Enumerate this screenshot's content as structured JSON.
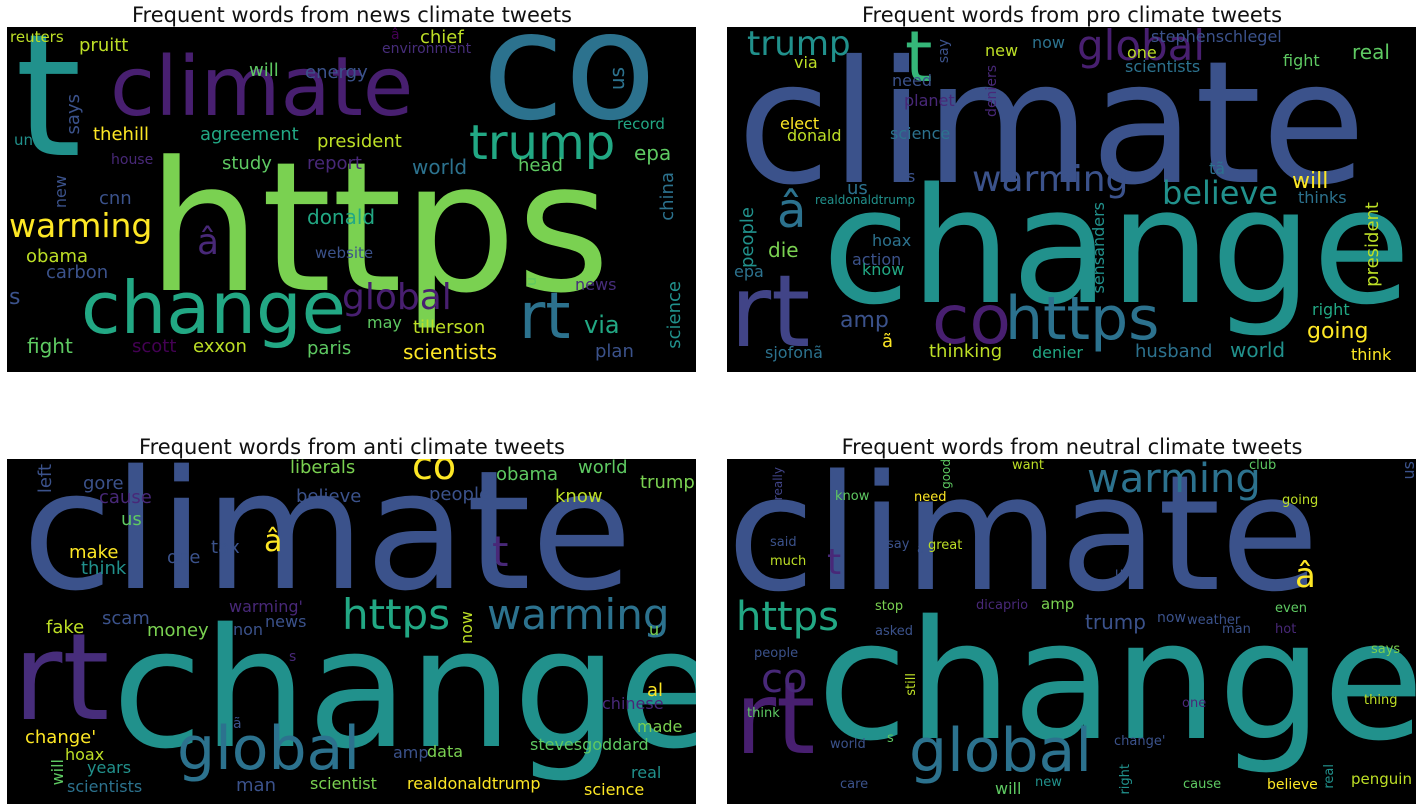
{
  "panels": [
    {
      "title": "Frequent words from news climate tweets",
      "words": [
        {
          "text": "https",
          "color": "#7ad151"
        },
        {
          "text": "co",
          "color": "#2c728e"
        },
        {
          "text": "t",
          "color": "#21918c"
        },
        {
          "text": "climate",
          "color": "#481f70"
        },
        {
          "text": "trump",
          "color": "#22a884"
        },
        {
          "text": "change",
          "color": "#22a884"
        },
        {
          "text": "rt",
          "color": "#2c728e"
        },
        {
          "text": "warming",
          "color": "#fde725"
        },
        {
          "text": "global",
          "color": "#481f70"
        },
        {
          "text": "reuters",
          "color": "#bddf26"
        },
        {
          "text": "pruitt",
          "color": "#bddf26"
        },
        {
          "text": "will",
          "color": "#5ec962"
        },
        {
          "text": "energy",
          "color": "#3b528b"
        },
        {
          "text": "â",
          "color": "#440154"
        },
        {
          "text": "environment",
          "color": "#472d7b"
        },
        {
          "text": "chief",
          "color": "#bddf26"
        },
        {
          "text": "us",
          "color": "#2c728e"
        },
        {
          "text": "un",
          "color": "#21918c"
        },
        {
          "text": "says",
          "color": "#3b528b"
        },
        {
          "text": "thehill",
          "color": "#fde725"
        },
        {
          "text": "agreement",
          "color": "#22a884"
        },
        {
          "text": "president",
          "color": "#bddf26"
        },
        {
          "text": "record",
          "color": "#22a884"
        },
        {
          "text": "house",
          "color": "#482878"
        },
        {
          "text": "study",
          "color": "#5ec962"
        },
        {
          "text": "report",
          "color": "#482878"
        },
        {
          "text": "world",
          "color": "#2c728e"
        },
        {
          "text": "head",
          "color": "#5ec962"
        },
        {
          "text": "epa",
          "color": "#5ec962"
        },
        {
          "text": "new",
          "color": "#3b528b"
        },
        {
          "text": "cnn",
          "color": "#3b528b"
        },
        {
          "text": "donald",
          "color": "#22a884"
        },
        {
          "text": "china",
          "color": "#2c728e"
        },
        {
          "text": "â",
          "color": "#482878"
        },
        {
          "text": "obama",
          "color": "#bddf26"
        },
        {
          "text": "website",
          "color": "#3b528b"
        },
        {
          "text": "carbon",
          "color": "#3b528b"
        },
        {
          "text": "u",
          "color": "#5ec962"
        },
        {
          "text": "news",
          "color": "#472d7b"
        },
        {
          "text": "s",
          "color": "#3b528b"
        },
        {
          "text": "science",
          "color": "#21918c"
        },
        {
          "text": "may",
          "color": "#5ec962"
        },
        {
          "text": "tillerson",
          "color": "#bddf26"
        },
        {
          "text": "via",
          "color": "#22a884"
        },
        {
          "text": "fight",
          "color": "#5ec962"
        },
        {
          "text": "scott",
          "color": "#440154"
        },
        {
          "text": "exxon",
          "color": "#bddf26"
        },
        {
          "text": "paris",
          "color": "#5ec962"
        },
        {
          "text": "scientists",
          "color": "#fde725"
        },
        {
          "text": "plan",
          "color": "#3b528b"
        }
      ]
    },
    {
      "title": "Frequent words from pro climate tweets",
      "words": [
        {
          "text": "climate",
          "color": "#3b528b"
        },
        {
          "text": "change",
          "color": "#21918c"
        },
        {
          "text": "rt",
          "color": "#414487"
        },
        {
          "text": "https",
          "color": "#2c728e"
        },
        {
          "text": "co",
          "color": "#481f70"
        },
        {
          "text": "t",
          "color": "#35b779"
        },
        {
          "text": "global",
          "color": "#481f70"
        },
        {
          "text": "trump",
          "color": "#21918c"
        },
        {
          "text": "warming",
          "color": "#3b528b"
        },
        {
          "text": "believe",
          "color": "#21918c"
        },
        {
          "text": "â",
          "color": "#2c728e"
        },
        {
          "text": "amp",
          "color": "#3b528b"
        },
        {
          "text": "going",
          "color": "#fde725"
        },
        {
          "text": "world",
          "color": "#21918c"
        },
        {
          "text": "husband",
          "color": "#2c728e"
        },
        {
          "text": "thinking",
          "color": "#bddf26"
        },
        {
          "text": "denier",
          "color": "#22a884"
        },
        {
          "text": "ã",
          "color": "#fde725"
        },
        {
          "text": "sjofonã",
          "color": "#2c728e"
        },
        {
          "text": "people",
          "color": "#21918c"
        },
        {
          "text": "die",
          "color": "#7ad151"
        },
        {
          "text": "epa",
          "color": "#2c728e"
        },
        {
          "text": "hoax",
          "color": "#2c728e"
        },
        {
          "text": "action",
          "color": "#3b528b"
        },
        {
          "text": "know",
          "color": "#22a884"
        },
        {
          "text": "us",
          "color": "#2c728e"
        },
        {
          "text": "s",
          "color": "#3b528b"
        },
        {
          "text": "realdonaldtrump",
          "color": "#21918c"
        },
        {
          "text": "elect",
          "color": "#fde725"
        },
        {
          "text": "donald",
          "color": "#bddf26"
        },
        {
          "text": "science",
          "color": "#2c728e"
        },
        {
          "text": "planet",
          "color": "#482878"
        },
        {
          "text": "need",
          "color": "#3b528b"
        },
        {
          "text": "via",
          "color": "#bddf26"
        },
        {
          "text": "say",
          "color": "#3b528b"
        },
        {
          "text": "new",
          "color": "#bddf26"
        },
        {
          "text": "now",
          "color": "#2c728e"
        },
        {
          "text": "deniers",
          "color": "#482878"
        },
        {
          "text": "one",
          "color": "#bddf26"
        },
        {
          "text": "stephenschlegel",
          "color": "#3b528b"
        },
        {
          "text": "scientists",
          "color": "#2c728e"
        },
        {
          "text": "real",
          "color": "#5ec962"
        },
        {
          "text": "fight",
          "color": "#5ec962"
        },
        {
          "text": "tã",
          "color": "#2c728e"
        },
        {
          "text": "will",
          "color": "#fde725"
        },
        {
          "text": "thinks",
          "color": "#2c728e"
        },
        {
          "text": "president",
          "color": "#bddf26"
        },
        {
          "text": "sensanders",
          "color": "#21918c"
        },
        {
          "text": "right",
          "color": "#22a884"
        },
        {
          "text": "think",
          "color": "#fde725"
        }
      ]
    },
    {
      "title": "Frequent words from anti climate tweets",
      "words": [
        {
          "text": "climate",
          "color": "#3b528b"
        },
        {
          "text": "change",
          "color": "#21918c"
        },
        {
          "text": "rt",
          "color": "#472d7b"
        },
        {
          "text": "global",
          "color": "#2c728e"
        },
        {
          "text": "https",
          "color": "#22a884"
        },
        {
          "text": "warming",
          "color": "#2c728e"
        },
        {
          "text": "co",
          "color": "#fde725"
        },
        {
          "text": "t",
          "color": "#482878"
        },
        {
          "text": "â",
          "color": "#fde725"
        },
        {
          "text": "gore",
          "color": "#3b528b"
        },
        {
          "text": "cause",
          "color": "#482878"
        },
        {
          "text": "left",
          "color": "#3b528b"
        },
        {
          "text": "liberals",
          "color": "#7ad151"
        },
        {
          "text": "believe",
          "color": "#3b528b"
        },
        {
          "text": "people",
          "color": "#3b528b"
        },
        {
          "text": "obama",
          "color": "#5ec962"
        },
        {
          "text": "know",
          "color": "#bddf26"
        },
        {
          "text": "world",
          "color": "#5ec962"
        },
        {
          "text": "trump",
          "color": "#7ad151"
        },
        {
          "text": "us",
          "color": "#5ec962"
        },
        {
          "text": "make",
          "color": "#fde725"
        },
        {
          "text": "one",
          "color": "#3b528b"
        },
        {
          "text": "think",
          "color": "#21918c"
        },
        {
          "text": "tax",
          "color": "#3b528b"
        },
        {
          "text": "warming'",
          "color": "#482878"
        },
        {
          "text": "scam",
          "color": "#3b528b"
        },
        {
          "text": "non",
          "color": "#3b528b"
        },
        {
          "text": "news",
          "color": "#3b528b"
        },
        {
          "text": "fake",
          "color": "#bddf26"
        },
        {
          "text": "money",
          "color": "#7ad151"
        },
        {
          "text": "now",
          "color": "#bddf26"
        },
        {
          "text": "u",
          "color": "#7ad151"
        },
        {
          "text": "s",
          "color": "#482878"
        },
        {
          "text": "al",
          "color": "#fde725"
        },
        {
          "text": "chinese",
          "color": "#482878"
        },
        {
          "text": "made",
          "color": "#7ad151"
        },
        {
          "text": "ã",
          "color": "#3b528b"
        },
        {
          "text": "change'",
          "color": "#fde725"
        },
        {
          "text": "hoax",
          "color": "#bddf26"
        },
        {
          "text": "amp",
          "color": "#3b528b"
        },
        {
          "text": "data",
          "color": "#7ad151"
        },
        {
          "text": "stevesgoddard",
          "color": "#5ec962"
        },
        {
          "text": "will",
          "color": "#5ec962"
        },
        {
          "text": "years",
          "color": "#21918c"
        },
        {
          "text": "real",
          "color": "#21918c"
        },
        {
          "text": "scientists",
          "color": "#2c728e"
        },
        {
          "text": "man",
          "color": "#3b528b"
        },
        {
          "text": "scientist",
          "color": "#7ad151"
        },
        {
          "text": "realdonaldtrump",
          "color": "#fde725"
        },
        {
          "text": "science",
          "color": "#fde725"
        }
      ]
    },
    {
      "title": "Frequent words from neutral climate tweets",
      "words": [
        {
          "text": "climate",
          "color": "#3b528b"
        },
        {
          "text": "change",
          "color": "#21918c"
        },
        {
          "text": "rt",
          "color": "#481f70"
        },
        {
          "text": "global",
          "color": "#2c728e"
        },
        {
          "text": "https",
          "color": "#22a884"
        },
        {
          "text": "warming",
          "color": "#2c728e"
        },
        {
          "text": "co",
          "color": "#482878"
        },
        {
          "text": "t",
          "color": "#482878"
        },
        {
          "text": "â",
          "color": "#fde725"
        },
        {
          "text": "really",
          "color": "#414487"
        },
        {
          "text": "know",
          "color": "#5ec962"
        },
        {
          "text": "good",
          "color": "#5ec962"
        },
        {
          "text": "need",
          "color": "#fde725"
        },
        {
          "text": "want",
          "color": "#bddf26"
        },
        {
          "text": "club",
          "color": "#5ec962"
        },
        {
          "text": "us",
          "color": "#3b528b"
        },
        {
          "text": "going",
          "color": "#bddf26"
        },
        {
          "text": "said",
          "color": "#3b528b"
        },
        {
          "text": "say",
          "color": "#3b528b"
        },
        {
          "text": "great",
          "color": "#bddf26"
        },
        {
          "text": "ã",
          "color": "#3b528b"
        },
        {
          "text": "much",
          "color": "#bddf26"
        },
        {
          "text": "u",
          "color": "#3b528b"
        },
        {
          "text": "stop",
          "color": "#7ad151"
        },
        {
          "text": "dicaprio",
          "color": "#482878"
        },
        {
          "text": "amp",
          "color": "#7ad151"
        },
        {
          "text": "even",
          "color": "#5ec962"
        },
        {
          "text": "trump",
          "color": "#3b528b"
        },
        {
          "text": "now",
          "color": "#3b528b"
        },
        {
          "text": "weather",
          "color": "#3b528b"
        },
        {
          "text": "man",
          "color": "#3b528b"
        },
        {
          "text": "asked",
          "color": "#3b528b"
        },
        {
          "text": "hot",
          "color": "#482878"
        },
        {
          "text": "people",
          "color": "#3b528b"
        },
        {
          "text": "says",
          "color": "#7ad151"
        },
        {
          "text": "still",
          "color": "#bddf26"
        },
        {
          "text": "one",
          "color": "#482878"
        },
        {
          "text": "think",
          "color": "#5ec962"
        },
        {
          "text": "thing",
          "color": "#bddf26"
        },
        {
          "text": "world",
          "color": "#3b528b"
        },
        {
          "text": "s",
          "color": "#5ec962"
        },
        {
          "text": "change'",
          "color": "#3b528b"
        },
        {
          "text": "right",
          "color": "#21918c"
        },
        {
          "text": "real",
          "color": "#21918c"
        },
        {
          "text": "care",
          "color": "#3b528b"
        },
        {
          "text": "will",
          "color": "#5ec962"
        },
        {
          "text": "new",
          "color": "#21918c"
        },
        {
          "text": "cause",
          "color": "#5ec962"
        },
        {
          "text": "believe",
          "color": "#fde725"
        },
        {
          "text": "penguin",
          "color": "#bddf26"
        }
      ]
    }
  ]
}
